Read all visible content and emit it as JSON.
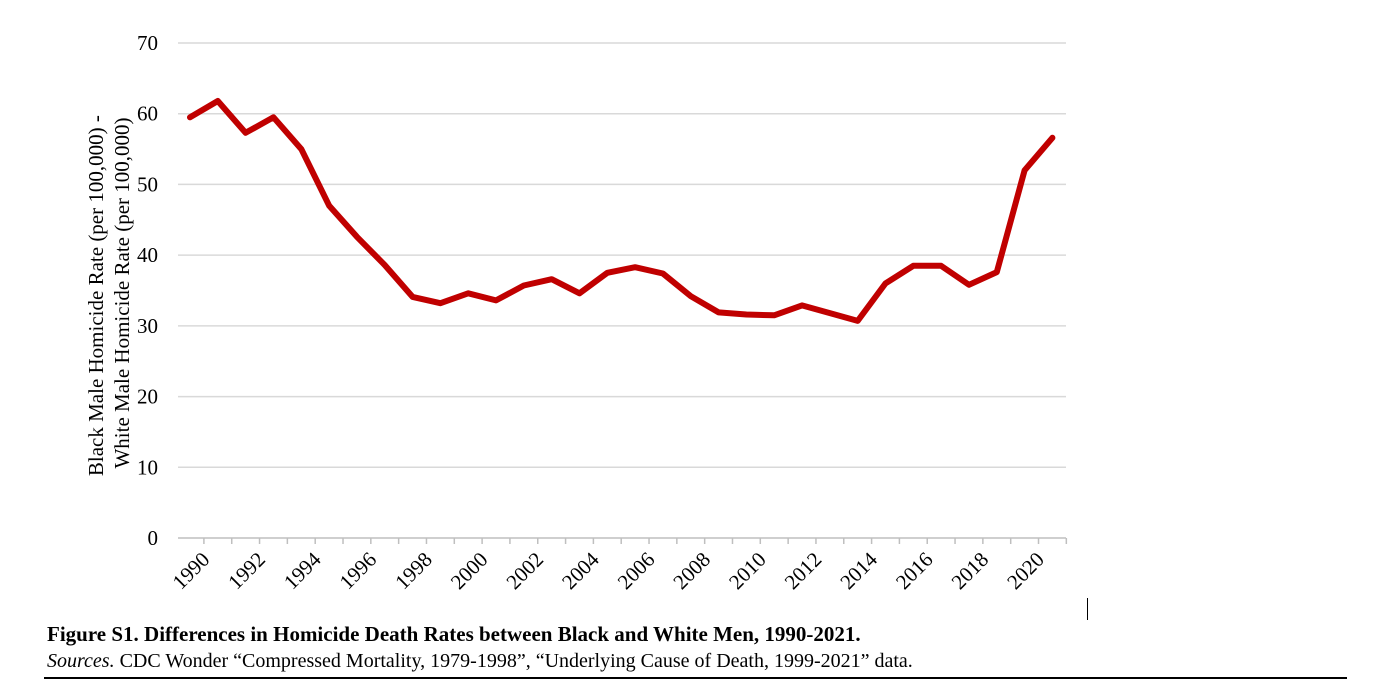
{
  "chart_data": {
    "type": "line",
    "title": "",
    "ylabel_lines": [
      "Black Male Homicide Rate (per 100,000) -",
      "White Male Homicide Rate (per 100,000)"
    ],
    "xlabel": "",
    "ylim": [
      0,
      70
    ],
    "yticks": [
      0,
      10,
      20,
      30,
      40,
      50,
      60,
      70
    ],
    "xticks": [
      "1990",
      "1992",
      "1994",
      "1996",
      "1998",
      "2000",
      "2002",
      "2004",
      "2006",
      "2008",
      "2010",
      "2012",
      "2014",
      "2016",
      "2018",
      "2020"
    ],
    "grid": true,
    "legend": "none",
    "series": [
      {
        "color": "#c00000",
        "x": [
          1990,
          1991,
          1992,
          1993,
          1994,
          1995,
          1996,
          1997,
          1998,
          1999,
          2000,
          2001,
          2002,
          2003,
          2004,
          2005,
          2006,
          2007,
          2008,
          2009,
          2010,
          2011,
          2012,
          2013,
          2014,
          2015,
          2016,
          2017,
          2018,
          2019,
          2020,
          2021
        ],
        "values": [
          59.5,
          61.8,
          57.3,
          59.5,
          55.0,
          47.0,
          42.6,
          38.6,
          34.1,
          33.2,
          34.6,
          33.6,
          35.7,
          36.6,
          34.6,
          37.5,
          38.3,
          37.4,
          34.2,
          31.9,
          31.6,
          31.5,
          32.9,
          31.8,
          30.7,
          36.0,
          38.5,
          38.5,
          35.8,
          37.6,
          52.0,
          56.6
        ]
      }
    ]
  },
  "caption": {
    "figure_title": "Figure S1. Differences in Homicide Death Rates between Black and White Men, 1990-2021.",
    "sources_label": "Sources.",
    "sources_text": " CDC Wonder “Compressed Mortality, 1979-1998”, “Underlying Cause of Death, 1999-2021” data."
  }
}
